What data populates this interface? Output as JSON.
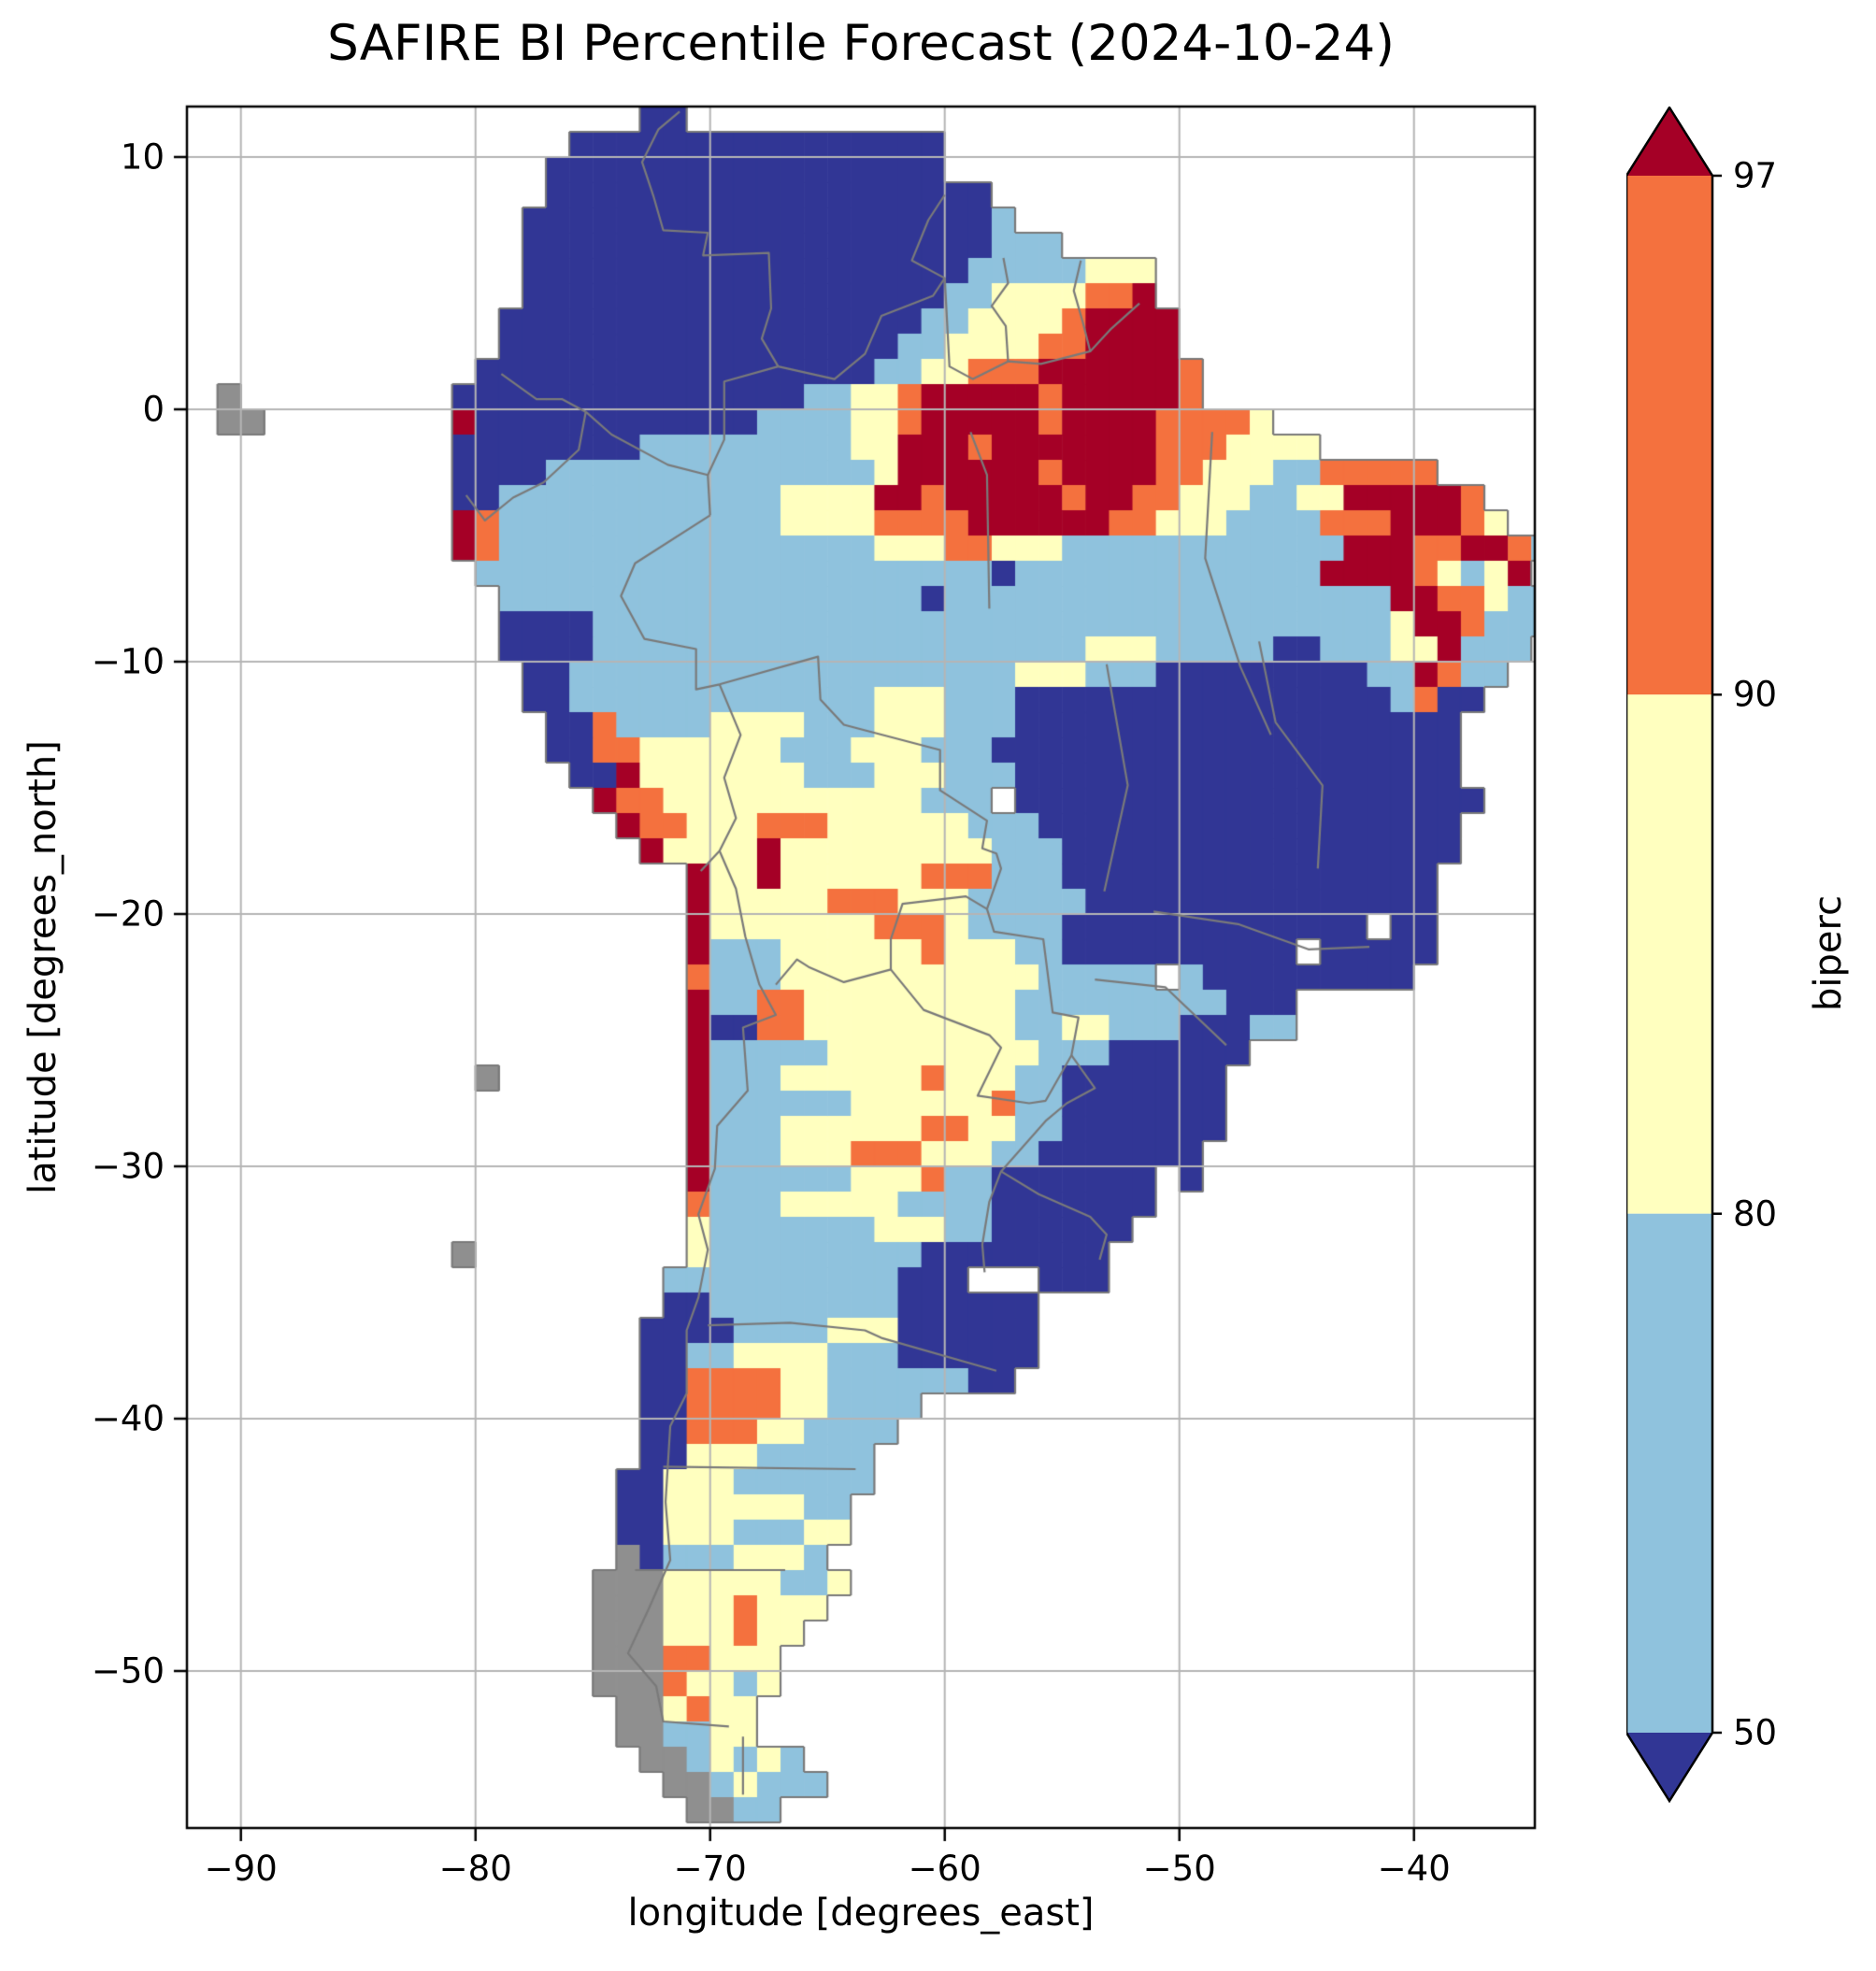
{
  "colors": {
    "background": "#ffffff",
    "coast": "#7a7a7a",
    "gridline": "#b5b5b5",
    "nodata_gray": "#8f8f8f",
    "frame": "#000000"
  },
  "chart_data": {
    "type": "heatmap",
    "title": "SAFIRE BI Percentile Forecast (2024-10-24)",
    "xlabel": "longitude [degrees_east]",
    "ylabel": "latitude [degrees_north]",
    "xlim": [
      -92.3,
      -34.85
    ],
    "ylim": [
      -56.2,
      12
    ],
    "grid_on": true,
    "x_ticks": {
      "values": [
        -90,
        -80,
        -70,
        -60,
        -50,
        -40
      ],
      "labels": [
        "−90",
        "−80",
        "−70",
        "−60",
        "−50",
        "−40"
      ]
    },
    "y_ticks": {
      "values": [
        10,
        0,
        -10,
        -20,
        -30,
        -40,
        -50
      ],
      "labels": [
        "10",
        "0",
        "−10",
        "−20",
        "−30",
        "−40",
        "−50"
      ]
    },
    "colorbar": {
      "label": "biperc",
      "levels": [
        50,
        80,
        90,
        97
      ],
      "tick_labels": [
        "50",
        "80",
        "90",
        "97"
      ],
      "extend": "both",
      "colors": {
        "under_50": "#313695",
        "between_50_80": "#8fc2dd",
        "between_80_90": "#ffffbf",
        "between_90_97": "#f4713e",
        "over_97": "#a50026"
      }
    },
    "map": {
      "region": "South America",
      "lon_origin": -92,
      "lat_origin": 12,
      "cell_size_deg": 1,
      "value_key": {
        ".": "ocean",
        "0": "<50",
        "1": "50-80",
        "2": "80-90",
        "3": "90-97",
        "4": ">97",
        "g": "no-data"
      },
      "rows": [
        "...................00.....................................",
        "................0000000000000000..........................",
        "...............00000000000000000..........................",
        "...............0000000000000000000........................",
        "..............000000000000000000001.......................",
        "..............00000000000000000000111.....................",
        "..............000000000000000000011111222.................",
        "..............000000000000000000112222334.................",
        ".............00000000000000000011222234444................",
        ".............00000000000000000112222334444................",
        "............0000000000000000011223334444443...............",
        ".g.........00000000000000011223444443444443...............",
        ".gg........40000000000001111223444443444433332............",
        "...........0000000011111111122444344444443332222..........",
        "...........000011111111111111244444434444332221133333.....",
        "...........00111111111111222244344444344332221122444443...",
        "...........431111111111112222333344444433222111133344432..",
        "...........43111111111111111122233222111111111111444334431",
        "............111111111111111111111101111111111111444432124",
        ".............111111111111111111011111111111111111114433211",
        ".............000011111111111111111111111111111111112443111",
        ".............00001111111111111111111112221111100111224111.",
        "..............001111111111111111111222111000000000114311..",
        "..............00111111111111122211100000000000000001300...",
        "...............003111122221112221110000000000000000000....",
        "...............003322222211122211100000000000000000000....",
        "................00422222221112221110000000000000000000....",
        ".................43322222222222111 00000000000000000000....",
        "..................433222333222222111000000000000000000....",
        "...................42222422222222211100000000000000000....",
        ".....................42242222223331110000000000000000.....",
        ".....................42222233322211111000000000000000.....",
        ".....................42222222333211110000000000000 00......",
        ".....................41112222223222110000000000 00000......",
        ".....................31112222222222211111 1000000000.......",
        ".....................41133222222222111111111000...........",
        ".....................40033222222222112211100011...........",
        ".....................411111222222222111000000.............",
        "............g........41112222223222110000000..............",
        ".....................41111112222223110000000..............",
        ".....................41112222223322110000000..............",
        ".....................4111222333222110000000...............",
        ".....................41111112223110000000 0................",
        ".....................31112222211110000000.................",
        ".....................2111111122211000000..................",
        "...........g.........211111111100000000...................",
        "....................1111111111000...000...................",
        "....................0011111111000000......................",
        "...................00001111222000000......................",
        "...................00112222111000000......................",
        "...................0033332211111100.......................",
        "...................003333221111...........................",
        "...................00333221111............................",
        "...................0022211111.............................",
        "..................00222111111.............................",
        "..................0022222211..............................",
        "..................0022211122..............................",
        "..................g01112221...............................",
        ".................ggg22222112..............................",
        ".................ggg2223222...............................",
        ".................ggg222322................................",
        ".................ggg33222.................................",
        ".................ggg32212.................................",
        "..................gg2322..................................",
        "..................gg1122..................................",
        "...................gg12121................................",
        "....................gg12111...............................",
        ".....................gg11................................."
      ],
      "borders": [
        [
          [
            -71.3,
            11.8
          ],
          [
            -72.2,
            11.1
          ],
          [
            -72.9,
            9.8
          ],
          [
            -72.4,
            8.4
          ],
          [
            -72.0,
            7.1
          ],
          [
            -70.1,
            7.0
          ],
          [
            -70.3,
            6.1
          ],
          [
            -67.5,
            6.2
          ],
          [
            -67.4,
            4.0
          ],
          [
            -67.8,
            2.8
          ],
          [
            -67.1,
            1.7
          ]
        ],
        [
          [
            -67.1,
            1.7
          ],
          [
            -64.7,
            1.2
          ],
          [
            -63.4,
            2.2
          ],
          [
            -62.7,
            3.7
          ],
          [
            -60.5,
            4.5
          ],
          [
            -60.0,
            5.2
          ],
          [
            -61.4,
            5.9
          ],
          [
            -60.7,
            7.5
          ],
          [
            -60.0,
            8.5
          ]
        ],
        [
          [
            -60.0,
            5.2
          ],
          [
            -59.8,
            1.7
          ],
          [
            -58.8,
            1.2
          ],
          [
            -57.3,
            1.9
          ],
          [
            -55.9,
            1.8
          ],
          [
            -53.8,
            2.3
          ],
          [
            -52.9,
            3.2
          ],
          [
            -51.7,
            4.2
          ]
        ],
        [
          [
            -57.5,
            6.0
          ],
          [
            -57.3,
            5.0
          ],
          [
            -58.0,
            4.1
          ],
          [
            -57.4,
            3.3
          ],
          [
            -57.3,
            1.9
          ]
        ],
        [
          [
            -54.2,
            5.9
          ],
          [
            -54.5,
            4.7
          ],
          [
            -54.1,
            3.4
          ],
          [
            -53.8,
            2.3
          ]
        ],
        [
          [
            -78.9,
            1.4
          ],
          [
            -77.4,
            0.4
          ],
          [
            -76.3,
            0.4
          ],
          [
            -75.3,
            -0.1
          ]
        ],
        [
          [
            -75.3,
            -0.1
          ],
          [
            -74.2,
            -1.0
          ],
          [
            -71.8,
            -2.2
          ],
          [
            -70.1,
            -2.6
          ],
          [
            -70.0,
            -4.2
          ]
        ],
        [
          [
            -67.1,
            1.7
          ],
          [
            -69.4,
            1.1
          ],
          [
            -69.4,
            -1.2
          ],
          [
            -70.1,
            -2.6
          ]
        ],
        [
          [
            -80.4,
            -3.4
          ],
          [
            -79.6,
            -4.4
          ],
          [
            -78.4,
            -3.5
          ],
          [
            -77.1,
            -2.9
          ],
          [
            -75.6,
            -1.6
          ],
          [
            -75.3,
            -0.1
          ]
        ],
        [
          [
            -70.0,
            -4.2
          ],
          [
            -73.2,
            -6.1
          ],
          [
            -73.8,
            -7.4
          ],
          [
            -72.8,
            -9.1
          ],
          [
            -70.6,
            -9.5
          ],
          [
            -70.6,
            -11.1
          ],
          [
            -69.6,
            -10.9
          ]
        ],
        [
          [
            -69.6,
            -10.9
          ],
          [
            -68.7,
            -12.9
          ],
          [
            -69.4,
            -14.6
          ],
          [
            -68.9,
            -16.2
          ],
          [
            -69.6,
            -17.5
          ],
          [
            -70.4,
            -18.3
          ]
        ],
        [
          [
            -69.6,
            -17.5
          ],
          [
            -68.9,
            -19.0
          ],
          [
            -68.5,
            -20.9
          ],
          [
            -67.9,
            -22.8
          ],
          [
            -67.2,
            -24.0
          ],
          [
            -68.6,
            -24.5
          ],
          [
            -68.4,
            -27.0
          ],
          [
            -69.7,
            -28.4
          ],
          [
            -69.8,
            -30.1
          ],
          [
            -70.5,
            -31.9
          ],
          [
            -70.1,
            -33.3
          ],
          [
            -70.5,
            -35.2
          ],
          [
            -71.0,
            -36.5
          ],
          [
            -71.0,
            -39.0
          ],
          [
            -71.7,
            -40.3
          ],
          [
            -71.9,
            -43.3
          ],
          [
            -71.7,
            -45.6
          ],
          [
            -72.6,
            -47.5
          ],
          [
            -73.5,
            -49.3
          ],
          [
            -72.3,
            -50.6
          ],
          [
            -72.0,
            -52.0
          ],
          [
            -69.2,
            -52.2
          ]
        ],
        [
          [
            -68.6,
            -52.6
          ],
          [
            -68.6,
            -54.9
          ]
        ],
        [
          [
            -69.6,
            -10.9
          ],
          [
            -65.4,
            -9.8
          ],
          [
            -65.3,
            -11.5
          ],
          [
            -64.3,
            -12.5
          ],
          [
            -60.2,
            -13.5
          ],
          [
            -60.2,
            -15.1
          ],
          [
            -58.2,
            -16.3
          ],
          [
            -58.4,
            -17.4
          ],
          [
            -57.8,
            -17.6
          ],
          [
            -57.6,
            -18.2
          ],
          [
            -58.2,
            -19.8
          ]
        ],
        [
          [
            -58.2,
            -19.8
          ],
          [
            -59.1,
            -19.3
          ],
          [
            -61.8,
            -19.6
          ],
          [
            -62.3,
            -21.0
          ],
          [
            -62.3,
            -22.2
          ],
          [
            -64.3,
            -22.7
          ],
          [
            -65.8,
            -22.1
          ],
          [
            -66.3,
            -21.8
          ],
          [
            -67.2,
            -22.8
          ]
        ],
        [
          [
            -62.3,
            -22.2
          ],
          [
            -60.9,
            -23.8
          ],
          [
            -58.1,
            -24.8
          ],
          [
            -57.6,
            -25.3
          ],
          [
            -58.6,
            -27.2
          ],
          [
            -56.4,
            -27.5
          ],
          [
            -55.7,
            -27.4
          ],
          [
            -54.6,
            -25.6
          ]
        ],
        [
          [
            -58.2,
            -19.8
          ],
          [
            -57.9,
            -20.7
          ],
          [
            -55.8,
            -21.0
          ],
          [
            -55.4,
            -23.9
          ],
          [
            -54.3,
            -24.1
          ],
          [
            -54.6,
            -25.6
          ]
        ],
        [
          [
            -54.6,
            -25.6
          ],
          [
            -53.6,
            -26.9
          ],
          [
            -54.8,
            -27.5
          ],
          [
            -55.7,
            -28.2
          ],
          [
            -57.6,
            -30.2
          ],
          [
            -58.1,
            -31.4
          ],
          [
            -58.4,
            -33.1
          ],
          [
            -58.3,
            -34.2
          ]
        ],
        [
          [
            -57.6,
            -30.2
          ],
          [
            -56.0,
            -31.1
          ],
          [
            -53.8,
            -32.0
          ],
          [
            -53.1,
            -32.7
          ],
          [
            -53.4,
            -33.7
          ]
        ],
        [
          [
            -58.9,
            -0.9
          ],
          [
            -58.2,
            -2.6
          ],
          [
            -58.1,
            -7.9
          ]
        ],
        [
          [
            -48.6,
            -0.9
          ],
          [
            -48.9,
            -5.9
          ],
          [
            -47.4,
            -10.2
          ],
          [
            -46.1,
            -12.9
          ]
        ],
        [
          [
            -53.1,
            -10.1
          ],
          [
            -52.2,
            -14.9
          ],
          [
            -53.2,
            -19.1
          ]
        ],
        [
          [
            -46.6,
            -9.2
          ],
          [
            -45.9,
            -12.4
          ],
          [
            -43.9,
            -14.9
          ],
          [
            -44.1,
            -18.2
          ]
        ],
        [
          [
            -51.1,
            -19.9
          ],
          [
            -47.5,
            -20.4
          ],
          [
            -44.5,
            -21.4
          ],
          [
            -41.9,
            -21.3
          ]
        ],
        [
          [
            -53.6,
            -22.6
          ],
          [
            -50.6,
            -22.9
          ],
          [
            -48.0,
            -25.2
          ]
        ],
        [
          [
            -70.1,
            -36.3
          ],
          [
            -66.6,
            -36.2
          ],
          [
            -63.4,
            -36.5
          ],
          [
            -62.7,
            -36.8
          ],
          [
            -57.8,
            -38.1
          ]
        ],
        [
          [
            -72.0,
            -41.9
          ],
          [
            -63.8,
            -42.0
          ]
        ],
        [
          [
            -73.2,
            -46.0
          ],
          [
            -66.8,
            -46.0
          ]
        ]
      ]
    }
  }
}
